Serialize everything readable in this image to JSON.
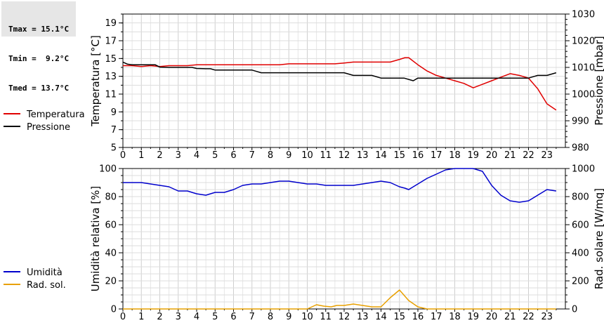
{
  "stats": {
    "tmax": "Tmax = 15.1°C",
    "tmin": "Tmin =  9.2°C",
    "tmed": "Tmed = 13.7°C"
  },
  "chart_data": [
    {
      "type": "line",
      "xlim": [
        0,
        24
      ],
      "x_ticks": [
        "0",
        "1",
        "2",
        "3",
        "4",
        "5",
        "6",
        "7",
        "8",
        "9",
        "10",
        "11",
        "12",
        "13",
        "14",
        "15",
        "16",
        "17",
        "18",
        "19",
        "20",
        "21",
        "22",
        "23"
      ],
      "ylabel": "Temperatura [°C]",
      "ylim": [
        5,
        20
      ],
      "y_ticks": [
        "5",
        "7",
        "9",
        "11",
        "13",
        "15",
        "17",
        "19"
      ],
      "y2label": "Pressione [mbar]",
      "y2lim": [
        980,
        1030
      ],
      "y2_ticks": [
        "980",
        "990",
        "1000",
        "1010",
        "1020",
        "1030"
      ],
      "grid": true,
      "legend_placement": "left",
      "series": [
        {
          "name": "Temperatura",
          "axis": "left",
          "color": "#e00000",
          "x": [
            0,
            0.5,
            1,
            1.5,
            2,
            2.5,
            3,
            3.5,
            4,
            4.5,
            5,
            5.5,
            6,
            6.5,
            7,
            7.5,
            8,
            8.5,
            9,
            9.5,
            10,
            10.5,
            11,
            11.5,
            12,
            12.5,
            13,
            13.5,
            14,
            14.5,
            15,
            15.3,
            15.5,
            16,
            16.5,
            17,
            17.5,
            18,
            18.5,
            19,
            19.5,
            20,
            20.5,
            21,
            21.5,
            22,
            22.5,
            23,
            23.5
          ],
          "y": [
            14.2,
            14.2,
            14.1,
            14.2,
            14.1,
            14.2,
            14.2,
            14.2,
            14.3,
            14.3,
            14.3,
            14.3,
            14.3,
            14.3,
            14.3,
            14.3,
            14.3,
            14.3,
            14.4,
            14.4,
            14.4,
            14.4,
            14.4,
            14.4,
            14.5,
            14.6,
            14.6,
            14.6,
            14.6,
            14.6,
            14.9,
            15.1,
            15.1,
            14.3,
            13.6,
            13.1,
            12.8,
            12.5,
            12.2,
            11.7,
            12.1,
            12.5,
            12.9,
            13.3,
            13.1,
            12.8,
            11.6,
            9.9,
            9.2
          ]
        },
        {
          "name": "Pressione",
          "axis": "right",
          "color": "#000000",
          "x": [
            0,
            0.25,
            0.5,
            1,
            1.5,
            1.75,
            2,
            2.5,
            3,
            3.5,
            3.75,
            4,
            4.5,
            4.75,
            5,
            5.5,
            6,
            6.5,
            7,
            7.25,
            7.5,
            8,
            9,
            10,
            10.5,
            11,
            11.5,
            12,
            12.5,
            13,
            13.5,
            14,
            14.5,
            15,
            15.25,
            15.75,
            16,
            17,
            18,
            19,
            20,
            21,
            22,
            22.5,
            23,
            23.5
          ],
          "y": [
            1012,
            1011.2,
            1011,
            1011,
            1011,
            1011,
            1010.1,
            1010,
            1010,
            1010,
            1010,
            1009.6,
            1009.5,
            1009.5,
            1009,
            1009,
            1009,
            1009,
            1009,
            1008.5,
            1008,
            1008,
            1008,
            1008,
            1008,
            1008,
            1008,
            1008,
            1007,
            1007,
            1007,
            1006,
            1006,
            1006,
            1006,
            1005,
            1006,
            1006,
            1006,
            1006,
            1006,
            1006,
            1006,
            1007,
            1007,
            1008
          ]
        }
      ]
    },
    {
      "type": "line",
      "xlim": [
        0,
        24
      ],
      "x_ticks": [
        "0",
        "1",
        "2",
        "3",
        "4",
        "5",
        "6",
        "7",
        "8",
        "9",
        "10",
        "11",
        "12",
        "13",
        "14",
        "15",
        "16",
        "17",
        "18",
        "19",
        "20",
        "21",
        "22",
        "23"
      ],
      "ylabel": "Umidità relativa [%]",
      "ylim": [
        0,
        100
      ],
      "y_ticks": [
        "0",
        "20",
        "40",
        "60",
        "80",
        "100"
      ],
      "y2label": "Rad. solare [W/mq]",
      "y2lim": [
        0,
        1000
      ],
      "y2_ticks": [
        "0",
        "200",
        "400",
        "600",
        "800",
        "1000"
      ],
      "grid": true,
      "legend_placement": "left",
      "series": [
        {
          "name": "Umidità",
          "axis": "left",
          "color": "#0000cc",
          "x": [
            0,
            0.5,
            1,
            1.5,
            2,
            2.5,
            3,
            3.5,
            4,
            4.5,
            5,
            5.5,
            6,
            6.5,
            7,
            7.5,
            8,
            8.5,
            9,
            9.5,
            10,
            10.5,
            11,
            11.5,
            12,
            12.5,
            13,
            13.5,
            14,
            14.5,
            15,
            15.3,
            15.5,
            16,
            16.5,
            17,
            17.5,
            18,
            18.5,
            19,
            19.5,
            20,
            20.5,
            21,
            21.5,
            22,
            22.5,
            23,
            23.5
          ],
          "y": [
            90,
            90,
            90,
            89,
            88,
            87,
            84,
            84,
            82,
            81,
            83,
            83,
            85,
            88,
            89,
            89,
            90,
            91,
            91,
            90,
            89,
            89,
            88,
            88,
            88,
            88,
            89,
            90,
            91,
            90,
            87,
            86,
            85,
            89,
            93,
            96,
            99,
            100,
            100,
            100,
            98,
            88,
            81,
            77,
            76,
            77,
            81,
            85,
            84
          ]
        },
        {
          "name": "Rad. sol.",
          "axis": "right",
          "color": "#e8a000",
          "x": [
            0,
            1,
            2,
            3,
            4,
            5,
            6,
            7,
            8,
            9,
            10,
            10.5,
            10.9,
            11.3,
            11.6,
            12,
            12.5,
            13,
            13.5,
            14,
            14.5,
            15,
            15.5,
            16,
            16.5,
            17,
            18,
            19,
            20,
            21,
            22,
            23,
            23.5
          ],
          "y": [
            0,
            0,
            0,
            0,
            0,
            0,
            0,
            0,
            0,
            0,
            0,
            30,
            20,
            15,
            25,
            25,
            35,
            25,
            15,
            15,
            80,
            135,
            60,
            15,
            0,
            0,
            0,
            0,
            0,
            0,
            0,
            0,
            0
          ]
        }
      ]
    }
  ]
}
